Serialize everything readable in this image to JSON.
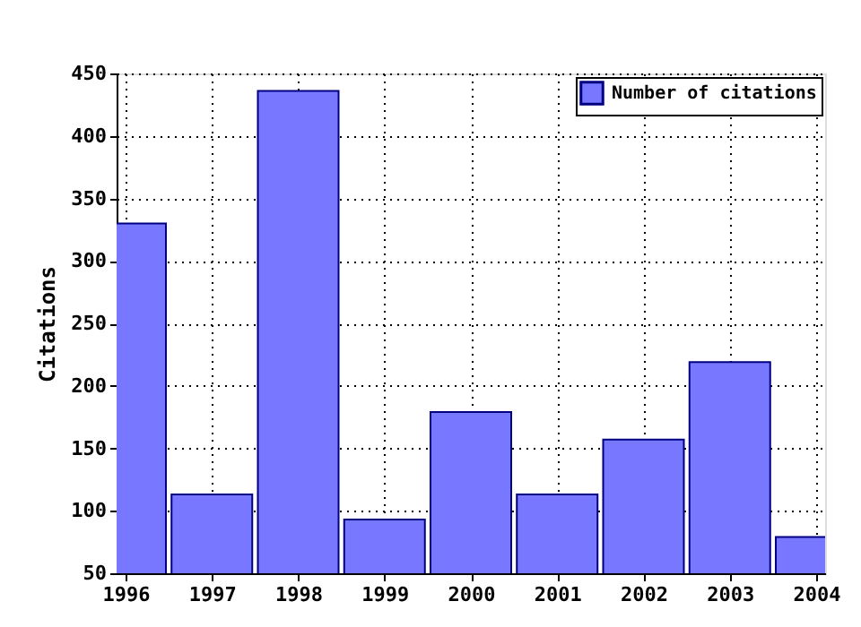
{
  "chart_data": {
    "type": "bar",
    "ylabel": "Citations",
    "x": [
      1996,
      1997,
      1998,
      1999,
      2000,
      2001,
      2002,
      2003,
      2004
    ],
    "series": [
      {
        "name": "Number of citations",
        "color": "#7777ff",
        "values": [
          330,
          113,
          436,
          93,
          179,
          113,
          157,
          219,
          79
        ]
      }
    ],
    "xlim": [
      1996,
      2004
    ],
    "xticks": [
      1996,
      1997,
      1998,
      1999,
      2000,
      2001,
      2002,
      2003,
      2004
    ],
    "ylim": [
      50,
      450
    ],
    "yticks": [
      50,
      100,
      150,
      200,
      250,
      300,
      350,
      400,
      450
    ],
    "grid": true,
    "legend": "top right"
  }
}
